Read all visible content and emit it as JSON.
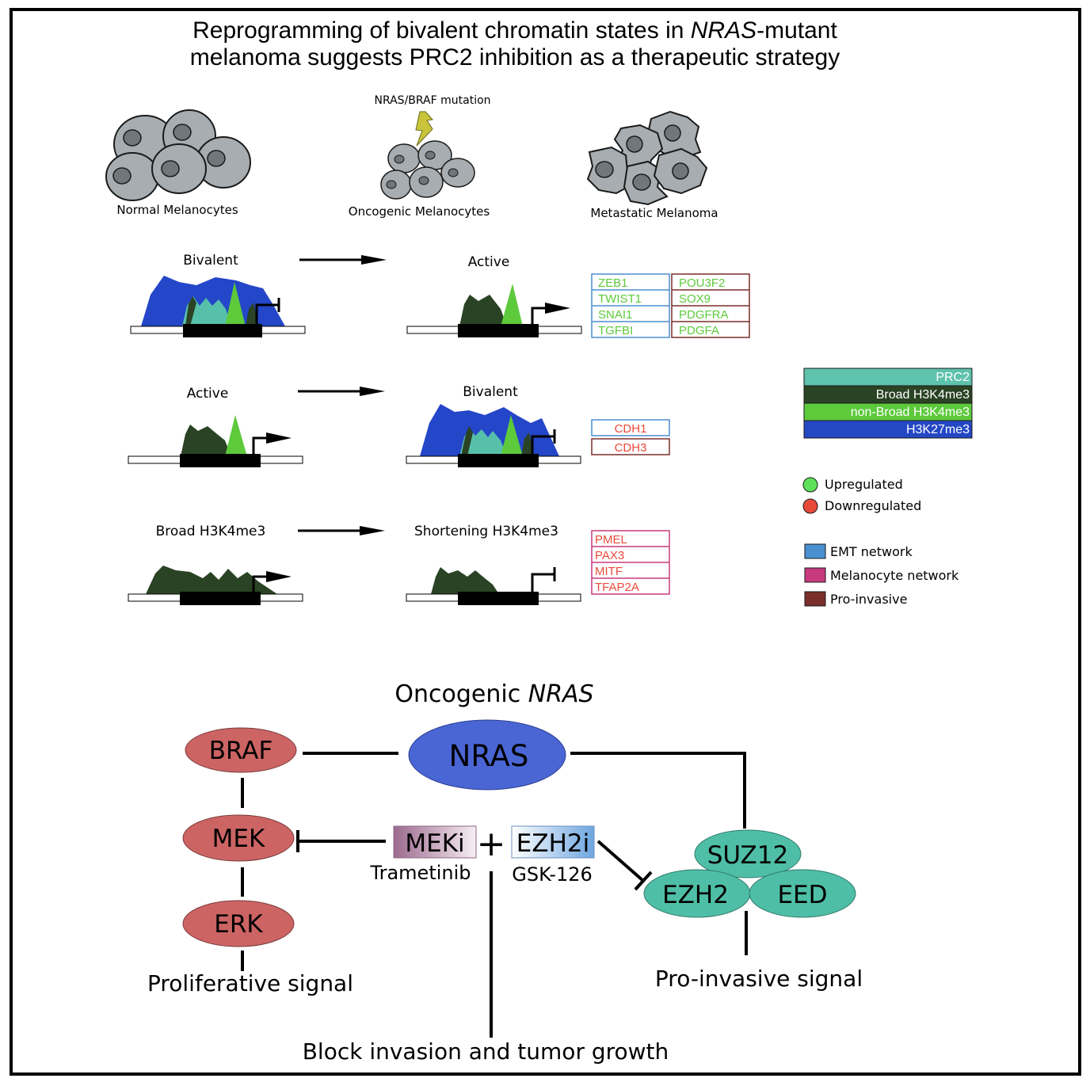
{
  "title": {
    "line1_a": "Reprogramming of bivalent chromatin states in ",
    "line1_b": "NRAS",
    "line1_c": "-mutant",
    "line2": "melanoma suggests PRC2 inhibition as a therapeutic strategy"
  },
  "cells": {
    "normal": "Normal Melanocytes",
    "oncogenic": "Oncogenic Melanocytes",
    "metastatic": "Metastatic Melanoma",
    "mutation": "NRAS/BRAF mutation"
  },
  "transitions": [
    {
      "from": "Bivalent",
      "to": "Active",
      "genes_left": [
        "ZEB1",
        "TWIST1",
        "SNAI1",
        "TGFBI"
      ],
      "genes_right": [
        "POU3F2",
        "SOX9",
        "PDGFRA",
        "PDGFA"
      ]
    },
    {
      "from": "Active",
      "to": "Bivalent",
      "genes": [
        "CDH1",
        "CDH3"
      ]
    },
    {
      "from": "Broad H3K4me3",
      "to": "Shortening H3K4me3",
      "genes": [
        "PMEL",
        "PAX3",
        "MITF",
        "TFAP2A"
      ]
    }
  ],
  "legend": {
    "tracks": [
      {
        "label": "PRC2",
        "color": "#5ec2ac"
      },
      {
        "label": "Broad H3K4me3",
        "color": "#2a4324"
      },
      {
        "label": "non-Broad H3K4me3",
        "color": "#5dca3c"
      },
      {
        "label": "H3K27me3",
        "color": "#2447c4"
      }
    ],
    "regulation": [
      {
        "label": "Upregulated",
        "color": "#5fe05a"
      },
      {
        "label": "Downregulated",
        "color": "#e84a3a"
      }
    ],
    "networks": [
      {
        "label": "EMT network",
        "color": "#4a8fd0"
      },
      {
        "label": "Melanocyte network",
        "color": "#c83a7e"
      },
      {
        "label": "Pro-invasive",
        "color": "#7a2e2a"
      }
    ]
  },
  "pathway": {
    "header_a": "Oncogenic ",
    "header_b": "NRAS",
    "nras": "NRAS",
    "braf": "BRAF",
    "mek": "MEK",
    "erk": "ERK",
    "meki": "MEKi",
    "plus": "+",
    "ezh2i": "EZH2i",
    "trametinib": "Trametinib",
    "gsk": "GSK-126",
    "suz12": "SUZ12",
    "ezh2": "EZH2",
    "eed": "EED",
    "proliferative": "Proliferative signal",
    "proinvasive": "Pro-invasive signal",
    "block": "Block invasion and tumor growth"
  }
}
